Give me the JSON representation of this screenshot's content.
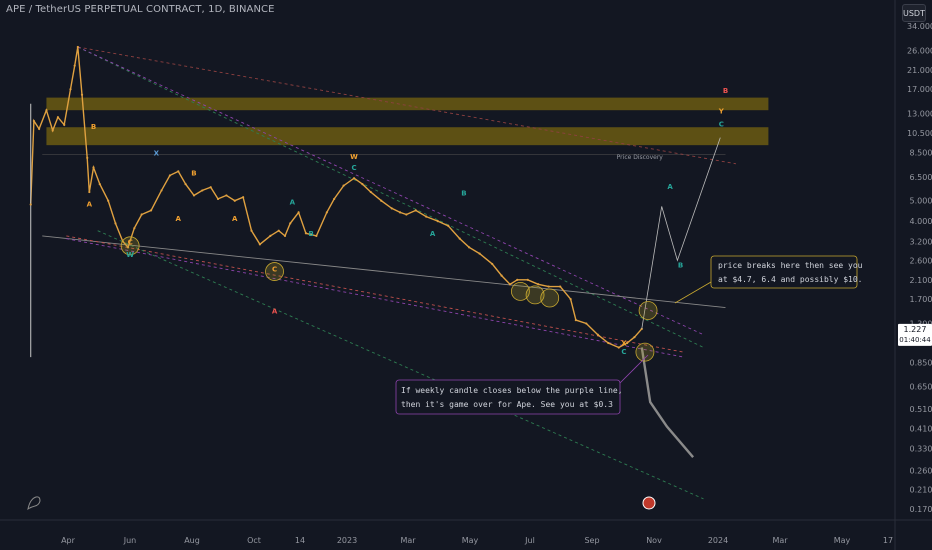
{
  "header": {
    "title": "APE / TetherUS PERPETUAL CONTRACT, 1D, BINANCE"
  },
  "currency": "USDT",
  "price_badge": {
    "price": "1.227",
    "countdown": "01:40:44"
  },
  "annotations": {
    "bull_note_line1": "price breaks here then see you",
    "bull_note_line2": "at $4.7, 6.4 and possibly $10.",
    "bear_note_line1": "If weekly candle closes below the purple line,",
    "bear_note_line2": "then it's game over for Ape. See you at $0.3",
    "price_discovery": "Price Discovery"
  },
  "colors": {
    "background": "#131722",
    "candle": "#e0a140",
    "zone": "#6b5a12",
    "projection": "#8a8a8a",
    "wave_orange": "#f0a030",
    "wave_teal": "#26a69a",
    "wave_red": "#ef5350",
    "wave_blue": "#5b9bd5",
    "green_dashed": "#2e7d52",
    "purple_dashed": "#8e44ad",
    "red_dashed": "#c0504d"
  },
  "chart_data": {
    "type": "line",
    "title": "APE / TetherUS PERPETUAL CONTRACT, 1D, BINANCE",
    "y_scale": "log",
    "y_ticks": [
      "34.000",
      "26.000",
      "21.000",
      "17.000",
      "13.000",
      "10.500",
      "8.500",
      "6.500",
      "5.000",
      "4.000",
      "3.200",
      "2.600",
      "2.100",
      "1.700",
      "1.300",
      "0.850",
      "0.650",
      "0.510",
      "0.410",
      "0.330",
      "0.260",
      "0.210",
      "0.170"
    ],
    "x_ticks": [
      "Apr",
      "Jun",
      "Aug",
      "Oct",
      "14",
      "2023",
      "Mar",
      "May",
      "Jul",
      "Sep",
      "Nov",
      "2024",
      "Mar",
      "May",
      "17"
    ],
    "series": [
      {
        "x": [
          "2022-03-17",
          "2022-03-20",
          "2022-03-25",
          "2022-04-01",
          "2022-04-07",
          "2022-04-12",
          "2022-04-18",
          "2022-04-24",
          "2022-04-28",
          "2022-05-01",
          "2022-05-05",
          "2022-05-10",
          "2022-05-12",
          "2022-05-16",
          "2022-05-22",
          "2022-05-30",
          "2022-06-06",
          "2022-06-13",
          "2022-06-18",
          "2022-06-24",
          "2022-07-01",
          "2022-07-10",
          "2022-07-20",
          "2022-07-28",
          "2022-08-05",
          "2022-08-12",
          "2022-08-20",
          "2022-08-28",
          "2022-09-05",
          "2022-09-12",
          "2022-09-20",
          "2022-09-28",
          "2022-10-06",
          "2022-10-14",
          "2022-10-22",
          "2022-11-01",
          "2022-11-09",
          "2022-11-15",
          "2022-11-20",
          "2022-11-28",
          "2022-12-05",
          "2022-12-15",
          "2022-12-25",
          "2023-01-01",
          "2023-01-10",
          "2023-01-20",
          "2023-01-28",
          "2023-02-05",
          "2023-02-15",
          "2023-02-25",
          "2023-03-05",
          "2023-03-11",
          "2023-03-20",
          "2023-03-30",
          "2023-04-10",
          "2023-04-20",
          "2023-05-01",
          "2023-05-10",
          "2023-05-20",
          "2023-06-01",
          "2023-06-10",
          "2023-06-18",
          "2023-06-25",
          "2023-07-05",
          "2023-07-15",
          "2023-07-25",
          "2023-08-05",
          "2023-08-15",
          "2023-08-20",
          "2023-08-30",
          "2023-09-10",
          "2023-09-20",
          "2023-09-30",
          "2023-10-08",
          "2023-10-15",
          "2023-10-22"
        ],
        "values": [
          4.8,
          12.0,
          11.0,
          13.5,
          10.8,
          12.5,
          11.5,
          17.0,
          22.0,
          27.0,
          16.0,
          8.0,
          5.5,
          7.2,
          6.0,
          5.0,
          3.9,
          3.2,
          3.0,
          3.7,
          4.3,
          4.5,
          5.6,
          6.6,
          6.9,
          6.0,
          5.3,
          5.6,
          5.8,
          5.1,
          5.3,
          5.0,
          5.2,
          3.6,
          3.1,
          3.4,
          3.6,
          3.4,
          3.9,
          4.4,
          3.5,
          3.4,
          4.4,
          5.1,
          5.9,
          6.4,
          6.0,
          5.5,
          5.0,
          4.6,
          4.4,
          4.3,
          4.5,
          4.2,
          4.0,
          3.8,
          3.3,
          3.0,
          2.8,
          2.5,
          2.2,
          2.0,
          2.1,
          2.1,
          2.0,
          1.95,
          1.95,
          1.7,
          1.35,
          1.3,
          1.15,
          1.05,
          1.0,
          1.05,
          1.12,
          1.227
        ]
      }
    ],
    "projection_up": {
      "x": [
        "2023-10-22",
        "2023-11-10",
        "2023-11-25",
        "2024-01-05"
      ],
      "values": [
        1.227,
        4.7,
        2.6,
        10.0
      ]
    },
    "projection_down": {
      "x": [
        "2023-10-22",
        "2023-10-30",
        "2023-11-15",
        "2023-12-10"
      ],
      "values": [
        1.0,
        0.55,
        0.42,
        0.3
      ]
    },
    "zones": [
      {
        "from": 13.5,
        "to": 15.5
      },
      {
        "from": 9.2,
        "to": 11.2
      }
    ],
    "wave_labels": [
      {
        "text": "B",
        "x": "2022-05-16",
        "y": 11.0,
        "color": "wave_orange"
      },
      {
        "text": "A",
        "x": "2022-05-12",
        "y": 4.7,
        "color": "wave_orange"
      },
      {
        "text": "X",
        "x": "2022-07-15",
        "y": 8.2,
        "color": "wave_blue"
      },
      {
        "text": "B",
        "x": "2022-08-20",
        "y": 6.6,
        "color": "wave_orange"
      },
      {
        "text": "A",
        "x": "2022-08-05",
        "y": 4.0,
        "color": "wave_orange"
      },
      {
        "text": "A",
        "x": "2022-09-28",
        "y": 4.0,
        "color": "wave_orange"
      },
      {
        "text": "A",
        "x": "2022-11-22",
        "y": 4.8,
        "color": "wave_teal"
      },
      {
        "text": "B",
        "x": "2022-12-10",
        "y": 3.4,
        "color": "wave_teal"
      },
      {
        "text": "W",
        "x": "2023-01-20",
        "y": 7.9,
        "color": "wave_orange"
      },
      {
        "text": "C",
        "x": "2023-01-20",
        "y": 7.0,
        "color": "wave_teal"
      },
      {
        "text": "B",
        "x": "2023-05-05",
        "y": 5.3,
        "color": "wave_teal"
      },
      {
        "text": "A",
        "x": "2023-04-05",
        "y": 3.4,
        "color": "wave_teal"
      },
      {
        "text": "C",
        "x": "2022-11-05",
        "y": 2.3,
        "color": "wave_orange"
      },
      {
        "text": "A",
        "x": "2022-11-05",
        "y": 1.45,
        "color": "wave_red"
      },
      {
        "text": "C",
        "x": "2022-06-20",
        "y": 3.1,
        "color": "wave_orange"
      },
      {
        "text": "W",
        "x": "2022-06-20",
        "y": 2.7,
        "color": "wave_teal"
      },
      {
        "text": "X",
        "x": "2023-10-05",
        "y": 1.02,
        "color": "wave_orange"
      },
      {
        "text": "C",
        "x": "2023-10-05",
        "y": 0.93,
        "color": "wave_teal"
      },
      {
        "text": "A",
        "x": "2023-11-18",
        "y": 5.7,
        "color": "wave_teal"
      },
      {
        "text": "B",
        "x": "2023-11-28",
        "y": 2.4,
        "color": "wave_teal"
      },
      {
        "text": "C",
        "x": "2024-01-06",
        "y": 11.3,
        "color": "wave_teal"
      },
      {
        "text": "Y",
        "x": "2024-01-06",
        "y": 13.0,
        "color": "wave_orange"
      },
      {
        "text": "B",
        "x": "2024-01-10",
        "y": 16.3,
        "color": "wave_red"
      }
    ]
  }
}
